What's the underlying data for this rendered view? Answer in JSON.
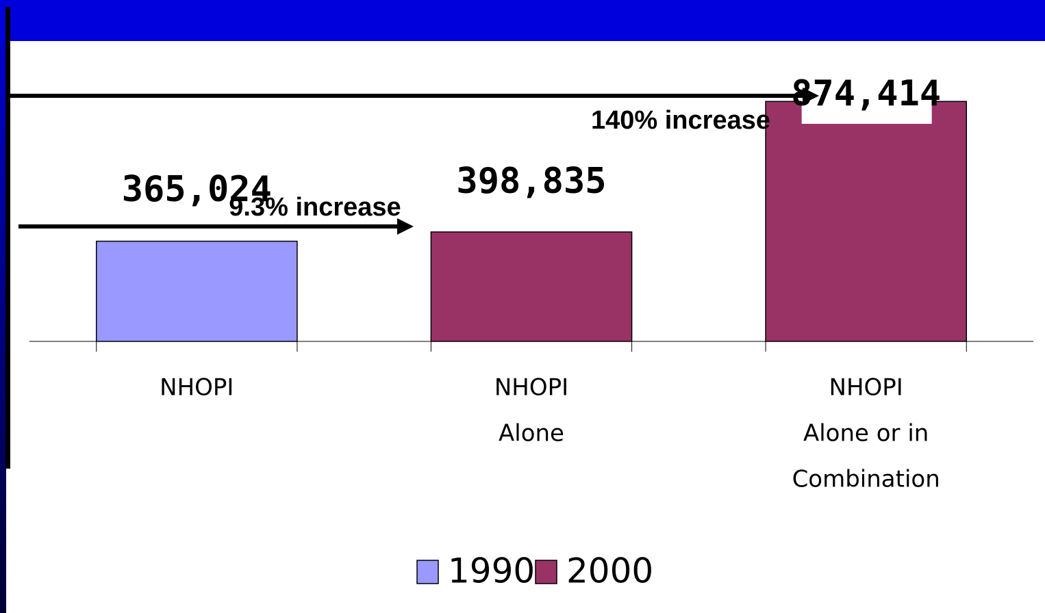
{
  "chart_data": {
    "type": "bar",
    "categories": [
      [
        "NHOPI"
      ],
      [
        "NHOPI",
        "Alone"
      ],
      [
        "NHOPI",
        "Alone or in",
        "Combination"
      ]
    ],
    "series": [
      {
        "name": "1990",
        "color": "#9999ff",
        "values": [
          365024,
          null,
          null
        ],
        "value_labels": [
          "365,024",
          null,
          null
        ]
      },
      {
        "name": "2000",
        "color": "#993366",
        "values": [
          null,
          398835,
          874414
        ],
        "value_labels": [
          null,
          "398,835",
          "874,414"
        ]
      }
    ],
    "ylim": [
      0,
      900000
    ],
    "annotations": [
      "9.3% increase",
      "140% increase"
    ],
    "legend": "bottom"
  }
}
